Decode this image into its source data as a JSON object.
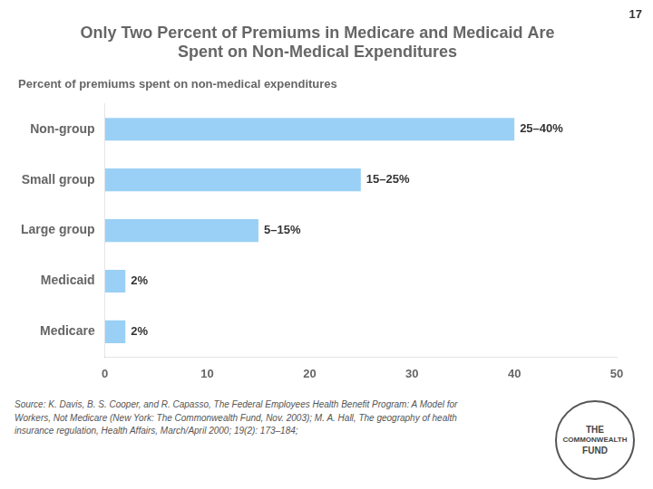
{
  "chart_data": {
    "type": "bar",
    "orientation": "horizontal",
    "title": [
      "Only Two Percent of Premiums in Medicare and Medicaid Are",
      "Spent on Non-Medical Expenditures"
    ],
    "subtitle": "Percent of premiums spent on non-medical expenditures",
    "categories": [
      "Non-group",
      "Small group",
      "Large group",
      "Medicaid",
      "Medicare"
    ],
    "values": [
      40,
      25,
      15,
      2,
      2
    ],
    "value_labels": [
      "25–40%",
      "15–25%",
      "5–15%",
      "2%",
      "2%"
    ],
    "data_labels": true,
    "xlim": [
      0,
      50
    ],
    "xticks": [
      0,
      10,
      20,
      30,
      40,
      50
    ],
    "grid": false,
    "annotations": [
      "17",
      "Source: K. Davis, B. S. Cooper, and R. Capasso, The Federal Employees Health Benefit Program: A Model for\nWorkers, Not Medicare (New York: The Commonwealth Fund, Nov. 2003); M. A. Hall, The geography of health\ninsurance regulation, Health Affairs, March/April 2000; 19(2): 173–184;",
      "THE",
      "COMMONWEALTH",
      "FUND"
    ]
  }
}
